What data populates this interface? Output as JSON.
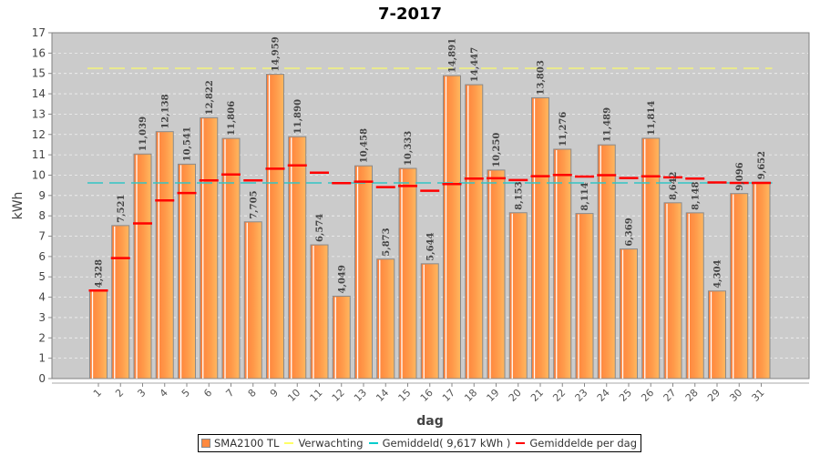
{
  "chart_data": {
    "type": "bar",
    "title": "7-2017",
    "xlabel": "dag",
    "ylabel": "kWh",
    "ylim": [
      0,
      17
    ],
    "yticks": [
      0,
      1,
      2,
      3,
      4,
      5,
      6,
      7,
      8,
      9,
      10,
      11,
      12,
      13,
      14,
      15,
      16,
      17
    ],
    "grid": true,
    "legend_position": "bottom",
    "categories": [
      "1",
      "2",
      "3",
      "4",
      "5",
      "6",
      "7",
      "8",
      "9",
      "10",
      "11",
      "12",
      "13",
      "14",
      "15",
      "16",
      "17",
      "18",
      "19",
      "20",
      "21",
      "22",
      "23",
      "24",
      "25",
      "26",
      "27",
      "28",
      "29",
      "30",
      "31"
    ],
    "series": [
      {
        "name": "SMA2100 TL",
        "kind": "bar",
        "color": "#ff9a4a",
        "values": [
          4.328,
          7.521,
          11.039,
          12.138,
          10.541,
          12.822,
          11.806,
          7.705,
          14.959,
          11.89,
          6.574,
          4.049,
          10.458,
          5.873,
          10.333,
          5.644,
          14.891,
          14.447,
          10.25,
          8.153,
          13.803,
          11.276,
          8.114,
          11.489,
          6.369,
          11.814,
          8.642,
          8.148,
          4.304,
          9.096,
          9.652
        ],
        "labels": [
          "4,328",
          "7,521",
          "11,039",
          "12,138",
          "10,541",
          "12,822",
          "11,806",
          "7,705",
          "14,959",
          "11,890",
          "6,574",
          "4,049",
          "10,458",
          "5,873",
          "10,333",
          "5,644",
          "14,891",
          "14,447",
          "10,250",
          "8,153",
          "13,803",
          "11,276",
          "8,114",
          "11,489",
          "6,369",
          "11,814",
          "8,642",
          "8,148",
          "4,304",
          "9,096",
          "9,652"
        ]
      },
      {
        "name": "Verwachting",
        "kind": "line",
        "color": "#e8e88a",
        "value": 15.25
      },
      {
        "name": "Gemiddeld( 9,617 kWh )",
        "kind": "line",
        "color": "#33c4c4",
        "value": 9.617
      },
      {
        "name": "Gemiddelde per dag",
        "kind": "marker",
        "color": "#ff0000",
        "values": [
          4.33,
          5.92,
          7.63,
          8.76,
          9.12,
          9.74,
          10.03,
          9.74,
          10.32,
          10.48,
          10.12,
          9.61,
          9.68,
          9.41,
          9.47,
          9.23,
          9.56,
          9.83,
          9.85,
          9.76,
          9.95,
          10.01,
          9.93,
          10.0,
          9.86,
          9.94,
          9.89,
          9.83,
          9.64,
          9.62,
          9.62
        ]
      }
    ]
  }
}
